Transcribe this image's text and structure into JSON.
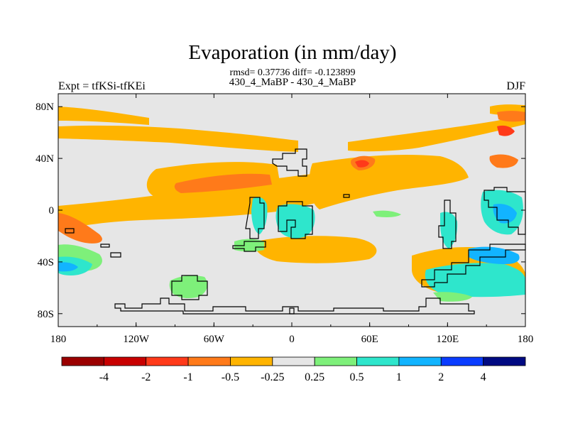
{
  "chart_data": {
    "type": "heatmap",
    "title": "Evaporation (in mm/day)",
    "stats_line": "rmsd= 0.37736 diff= -0.123899",
    "subtitle": "430_4_MaBP - 430_4_MaBP",
    "left_label": "Expt = tfKSi-tfKEi",
    "right_label": "DJF",
    "x_ticks": [
      "180",
      "120W",
      "60W",
      "0",
      "60E",
      "120E",
      "180"
    ],
    "y_ticks": [
      "80N",
      "40N",
      "0",
      "40S",
      "80S"
    ],
    "x_range": [
      -180,
      180
    ],
    "y_range": [
      -90,
      90
    ],
    "colorbar": {
      "levels": [
        "-4",
        "-2",
        "-1",
        "-0.5",
        "-0.25",
        "0.25",
        "0.5",
        "1",
        "2",
        "4"
      ],
      "colors": [
        "#9b0000",
        "#c80000",
        "#ff3a1a",
        "#ff7a1a",
        "#ffb400",
        "#e6e6e6",
        "#7ef07a",
        "#2ee6cc",
        "#12b4ff",
        "#0a3cff",
        "#000a82"
      ]
    }
  }
}
